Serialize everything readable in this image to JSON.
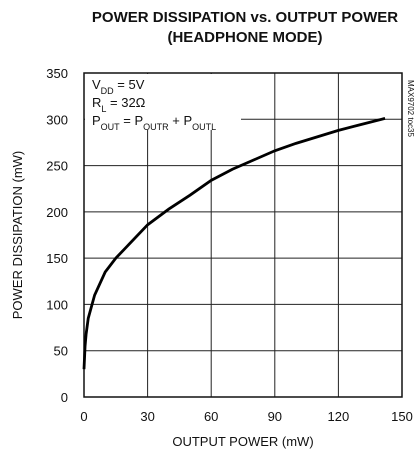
{
  "chart_data": {
    "type": "line",
    "title": [
      "POWER DISSIPATION vs. OUTPUT POWER",
      "(HEADPHONE MODE)"
    ],
    "xlabel": "OUTPUT POWER (mW)",
    "ylabel": "POWER DISSIPATION (mW)",
    "side_note": "MAX9702 toc35",
    "annotations": [
      [
        "V",
        "DD",
        " = 5V"
      ],
      [
        "R",
        "L",
        " = 32Ω"
      ],
      [
        "P",
        "OUT",
        " = P",
        "OUTR",
        " + P",
        "OUTL"
      ]
    ],
    "x": [
      0,
      0.5,
      1,
      2,
      5,
      10,
      15,
      20,
      30,
      40,
      50,
      60,
      70,
      80,
      90,
      100,
      110,
      120,
      130,
      142
    ],
    "series": [
      {
        "color": "#000000",
        "values": [
          30,
          55,
          68,
          85,
          110,
          135,
          150,
          162,
          186,
          203,
          218,
          234,
          246,
          256,
          266,
          274,
          281,
          288,
          294,
          301
        ]
      }
    ],
    "xlim": [
      0,
      150
    ],
    "xticks": [
      0,
      30,
      60,
      90,
      120,
      150
    ],
    "ylim": [
      0,
      350
    ],
    "yticks": [
      0,
      50,
      100,
      150,
      200,
      250,
      300,
      350
    ],
    "grid": true
  }
}
